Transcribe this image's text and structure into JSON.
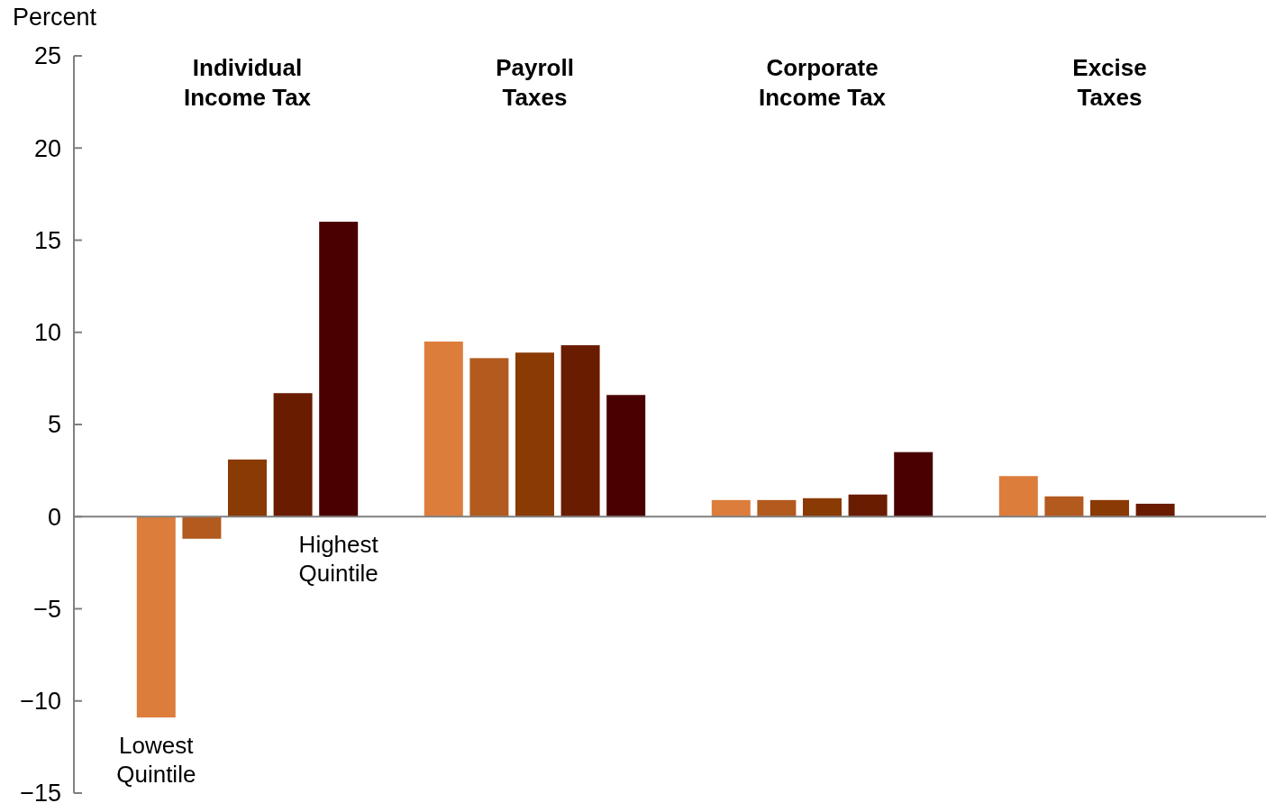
{
  "chart_data": {
    "type": "bar",
    "ylabel": "Percent",
    "categories": [
      "Individual Income Tax",
      "Payroll Taxes",
      "Corporate Income Tax",
      "Excise Taxes"
    ],
    "series": [
      {
        "name": "Lowest Quintile",
        "color": "#dc7d3c",
        "values": [
          -10.9,
          9.5,
          0.9,
          2.2
        ]
      },
      {
        "color": "#b35a1e",
        "values": [
          -1.2,
          8.6,
          0.9,
          1.1
        ]
      },
      {
        "color": "#8a3a03",
        "values": [
          3.1,
          8.9,
          1.0,
          0.9
        ]
      },
      {
        "color": "#6a1c00",
        "values": [
          6.7,
          9.3,
          1.2,
          0.7
        ]
      },
      {
        "name": "Highest Quintile",
        "color": "#4a0000",
        "values": [
          16.0,
          6.6,
          3.5,
          null
        ]
      }
    ],
    "ylim": [
      -15,
      25
    ],
    "yticks": [
      {
        "value": -15,
        "label": "−15"
      },
      {
        "value": -10,
        "label": "−10"
      },
      {
        "value": -5,
        "label": "−5"
      },
      0,
      5,
      10,
      15,
      20,
      25
    ]
  }
}
